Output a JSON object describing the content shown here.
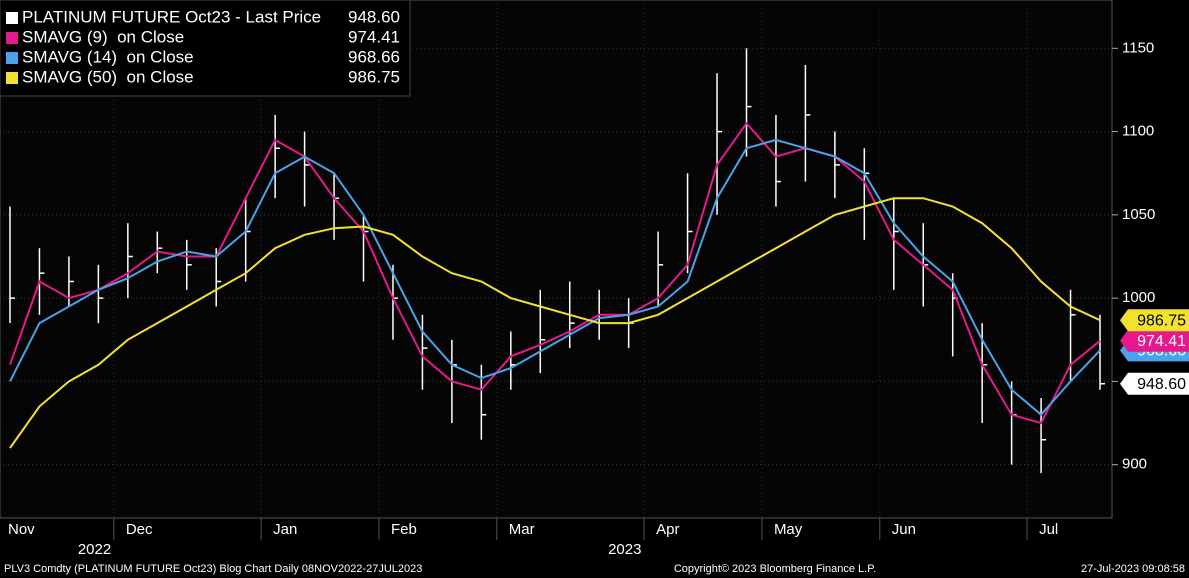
{
  "chart_data": {
    "type": "ohlc",
    "categories": [
      "Nov",
      null,
      null,
      null,
      "Dec",
      null,
      null,
      null,
      null,
      "Jan",
      null,
      null,
      null,
      "Feb",
      null,
      null,
      null,
      "Mar",
      null,
      null,
      null,
      null,
      "Apr",
      null,
      null,
      null,
      "May",
      null,
      null,
      null,
      "Jun",
      null,
      null,
      null,
      null,
      "Jul",
      null,
      null
    ],
    "year_labels": [
      {
        "index": 4,
        "label": "2022"
      },
      {
        "index": 22,
        "label": "2023"
      }
    ],
    "series": [
      {
        "name": "PLATINUM FUTURE Oct23 - Last Price",
        "last_label": "948.60",
        "color": "#ffffff",
        "values": [
          1000,
          1015,
          1010,
          1000,
          1025,
          1030,
          1020,
          1010,
          1040,
          1090,
          1080,
          1060,
          1040,
          1000,
          970,
          960,
          930,
          960,
          975,
          985,
          990,
          985,
          1020,
          1040,
          1100,
          1115,
          1070,
          1110,
          1080,
          1075,
          1040,
          1020,
          1000,
          960,
          930,
          915,
          990,
          948.6
        ],
        "high": [
          1055,
          1030,
          1025,
          1020,
          1045,
          1040,
          1035,
          1030,
          1060,
          1110,
          1100,
          1075,
          1050,
          1020,
          990,
          975,
          960,
          980,
          1005,
          1010,
          1005,
          1000,
          1040,
          1075,
          1135,
          1150,
          1110,
          1140,
          1100,
          1090,
          1060,
          1045,
          1015,
          985,
          950,
          940,
          1005,
          990
        ],
        "low": [
          985,
          990,
          995,
          985,
          1000,
          1015,
          1005,
          995,
          1010,
          1060,
          1055,
          1035,
          1010,
          975,
          945,
          925,
          915,
          945,
          955,
          970,
          975,
          970,
          995,
          1015,
          1050,
          1085,
          1055,
          1070,
          1060,
          1035,
          1005,
          995,
          965,
          925,
          900,
          895,
          950,
          945
        ]
      },
      {
        "name": "SMAVG (9)  on Close",
        "last_label": "974.41",
        "color": "#e6198c",
        "values": [
          960,
          1010,
          1000,
          1005,
          1015,
          1028,
          1025,
          1025,
          1060,
          1095,
          1085,
          1060,
          1040,
          1000,
          965,
          950,
          945,
          965,
          972,
          980,
          990,
          990,
          1000,
          1020,
          1080,
          1105,
          1085,
          1090,
          1085,
          1070,
          1035,
          1020,
          1005,
          960,
          930,
          925,
          960,
          974.41
        ]
      },
      {
        "name": "SMAVG (14)  on Close",
        "last_label": "968.66",
        "color": "#4aa3ea",
        "values": [
          950,
          985,
          995,
          1005,
          1012,
          1022,
          1028,
          1025,
          1040,
          1075,
          1085,
          1075,
          1050,
          1015,
          980,
          960,
          952,
          958,
          968,
          978,
          988,
          990,
          995,
          1010,
          1060,
          1090,
          1095,
          1090,
          1085,
          1075,
          1045,
          1025,
          1010,
          975,
          945,
          930,
          950,
          968.66
        ]
      },
      {
        "name": "SMAVG (50)  on Close",
        "last_label": "986.75",
        "color": "#f2e22e",
        "values": [
          910,
          935,
          950,
          960,
          975,
          985,
          995,
          1005,
          1015,
          1030,
          1038,
          1042,
          1043,
          1038,
          1025,
          1015,
          1010,
          1000,
          995,
          990,
          985,
          985,
          990,
          1000,
          1010,
          1020,
          1030,
          1040,
          1050,
          1055,
          1060,
          1060,
          1055,
          1045,
          1030,
          1010,
          995,
          986.75
        ]
      }
    ],
    "ylim": [
      868,
      1179
    ],
    "yticks": [
      900,
      950,
      1000,
      1050,
      1100,
      1150
    ],
    "yticks_labeled": [
      900,
      1000,
      1050,
      1100,
      1150
    ],
    "footer_left": "PLV3 Comdty (PLATINUM FUTURE  Oct23) Blog Chart  Daily 08NOV2022-27JUL2023",
    "footer_center": "Copyright© 2023 Bloomberg Finance L.P.",
    "footer_right": "27-Jul-2023 09:08:58"
  }
}
